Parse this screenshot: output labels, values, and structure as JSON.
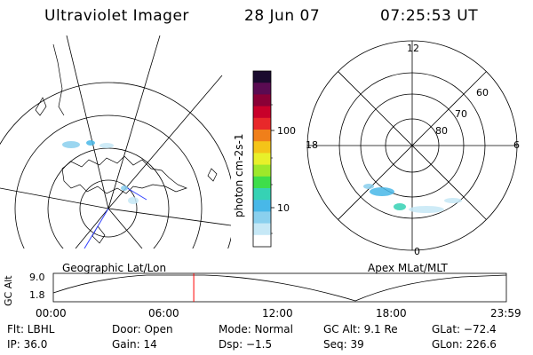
{
  "header": {
    "instrument": "Ultraviolet Imager",
    "date": "28 Jun 07",
    "time": "07:25:53 UT"
  },
  "colorbar": {
    "label": "photon cm-2s-1",
    "ticks": [
      "100",
      "10"
    ],
    "colors": [
      "#1a0a2e",
      "#5a0b52",
      "#8a0036",
      "#c8002a",
      "#e8282a",
      "#f07f1a",
      "#f4c418",
      "#e8f02a",
      "#9ee82a",
      "#3ede4a",
      "#36d2b4",
      "#48b8e8",
      "#8ad0ee",
      "#c6e8f6",
      "#ffffff"
    ]
  },
  "geo_panel": {
    "label": "Geographic Lat/Lon"
  },
  "apex_panel": {
    "label": "Apex MLat/MLT",
    "mlt_labels": {
      "top": "12",
      "right": "6",
      "bottom": "0",
      "left": "18"
    },
    "lat_labels": [
      "60",
      "70",
      "80"
    ]
  },
  "alt_plot": {
    "ylabel": "GC Alt",
    "yticks": [
      "9.0",
      "1.8"
    ],
    "xticks": [
      "00:00",
      "06:00",
      "12:00",
      "18:00",
      "23:59"
    ],
    "current_time_fraction": 0.31,
    "marker_color": "#ff0000"
  },
  "info": {
    "row1": {
      "flt": "Flt: LBHL",
      "door": "Door: Open",
      "mode": "Mode: Normal",
      "gcalt": "GC Alt: 9.1 Re",
      "glat": "GLat: −72.4"
    },
    "row2": {
      "ip": "IP: 36.0",
      "gain": "Gain: 14",
      "dsp": "Dsp:    −1.5",
      "seq": "Seq: 39",
      "glon": "GLon: 226.6"
    }
  }
}
